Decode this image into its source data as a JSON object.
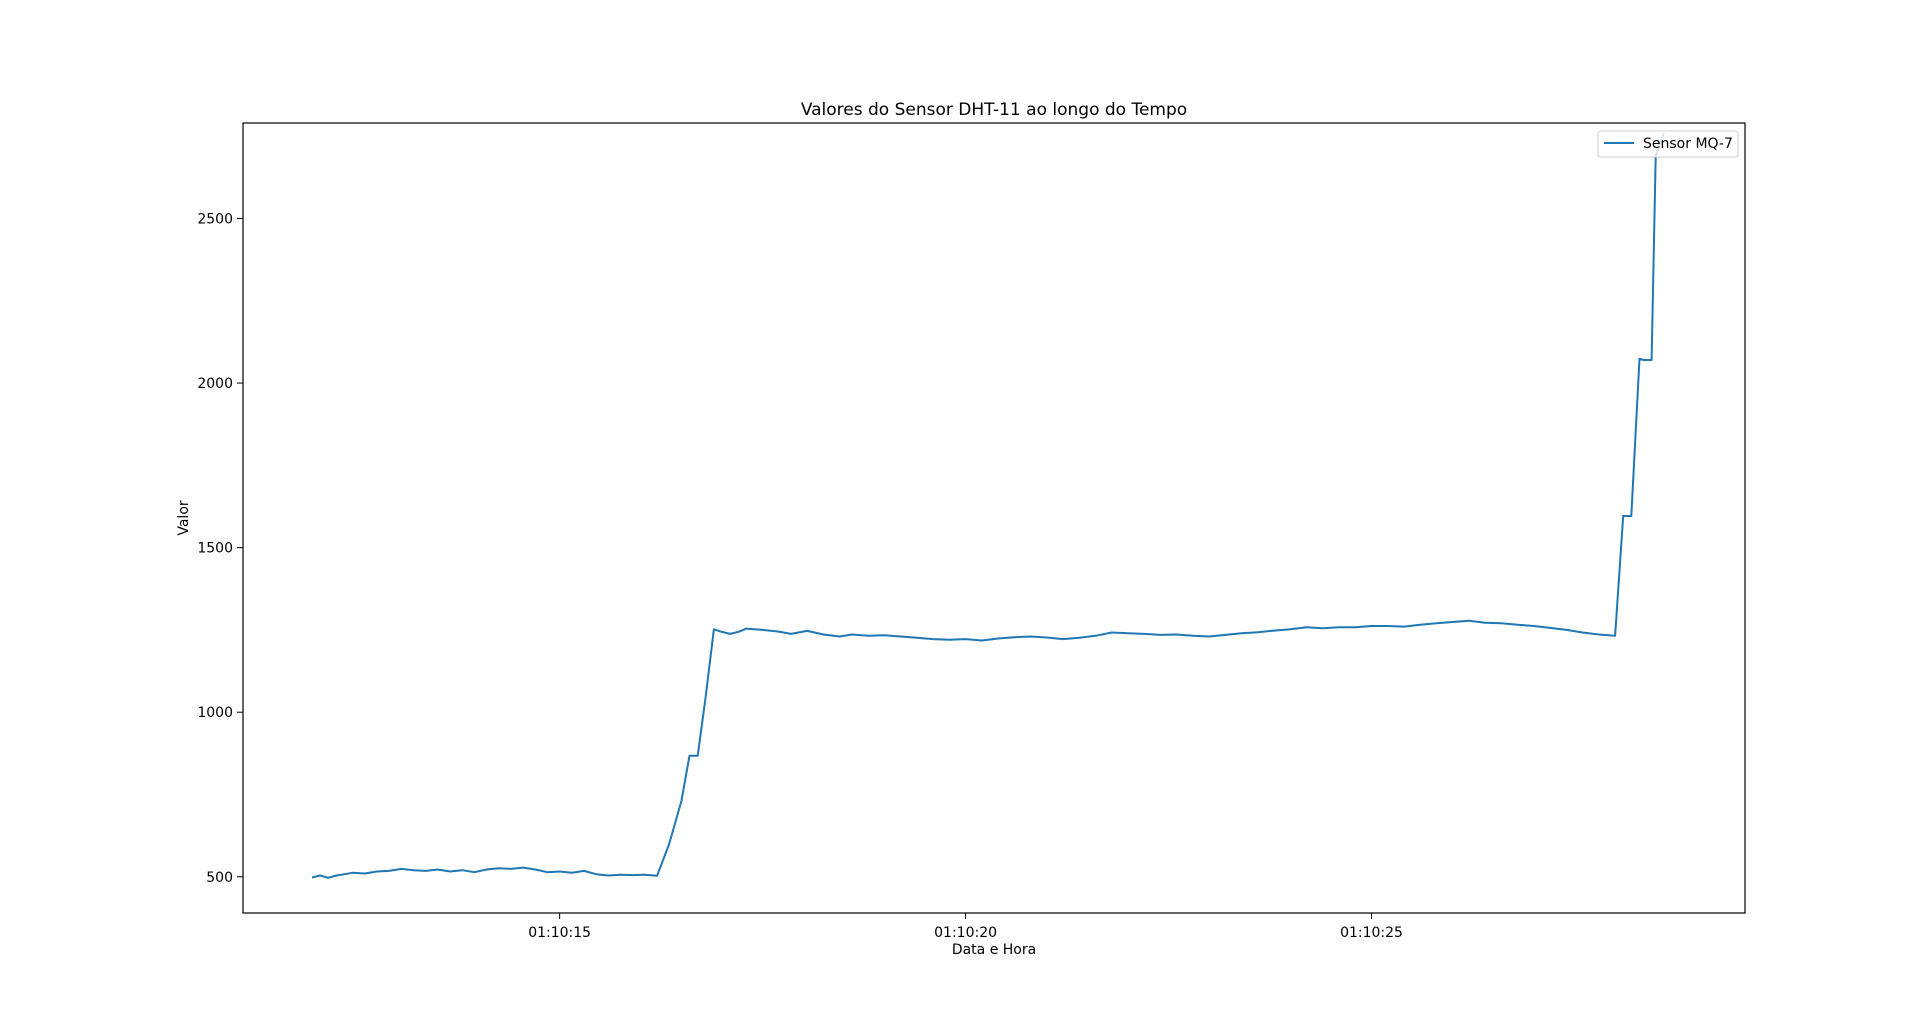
{
  "chart_data": {
    "type": "line",
    "title": "Valores do Sensor DHT-11 ao longo do Tempo",
    "xlabel": "Data e Hora",
    "ylabel": "Valor",
    "x_unit": "seconds after 01:10:00",
    "xlim": [
      11.1,
      29.6
    ],
    "ylim": [
      390,
      2790
    ],
    "x_ticks": [
      {
        "value": 15,
        "label": "01:10:15"
      },
      {
        "value": 20,
        "label": "01:10:20"
      },
      {
        "value": 25,
        "label": "01:10:25"
      }
    ],
    "y_ticks": [
      {
        "value": 500,
        "label": "500"
      },
      {
        "value": 1000,
        "label": "1000"
      },
      {
        "value": 1500,
        "label": "1500"
      },
      {
        "value": 2000,
        "label": "2000"
      },
      {
        "value": 2500,
        "label": "2500"
      }
    ],
    "grid": false,
    "legend_position": "upper right",
    "series": [
      {
        "name": "Sensor MQ-7",
        "color": "#1f77b4",
        "x": [
          11.95,
          12.05,
          12.15,
          12.25,
          12.35,
          12.45,
          12.6,
          12.75,
          12.9,
          13.05,
          13.2,
          13.35,
          13.5,
          13.65,
          13.8,
          13.95,
          14.1,
          14.25,
          14.4,
          14.55,
          14.7,
          14.85,
          15.0,
          15.15,
          15.3,
          15.45,
          15.6,
          15.75,
          15.9,
          16.05,
          16.2,
          16.35,
          16.5,
          16.6,
          16.7,
          16.8,
          16.9,
          17.0,
          17.1,
          17.2,
          17.3,
          17.5,
          17.7,
          17.85,
          18.05,
          18.25,
          18.45,
          18.6,
          18.8,
          19.0,
          19.2,
          19.4,
          19.6,
          19.8,
          20.0,
          20.2,
          20.4,
          20.6,
          20.8,
          21.0,
          21.2,
          21.4,
          21.6,
          21.8,
          22.0,
          22.2,
          22.4,
          22.6,
          22.8,
          23.0,
          23.2,
          23.4,
          23.6,
          23.8,
          24.0,
          24.2,
          24.4,
          24.6,
          24.8,
          25.0,
          25.2,
          25.4,
          25.6,
          25.8,
          26.0,
          26.2,
          26.4,
          26.6,
          26.8,
          27.0,
          27.2,
          27.4,
          27.6,
          27.8,
          28.0,
          28.1,
          28.2,
          28.3,
          28.35,
          28.45,
          28.5,
          28.6
        ],
        "y": [
          498,
          504,
          497,
          504,
          508,
          512,
          510,
          516,
          518,
          524,
          520,
          518,
          522,
          516,
          520,
          514,
          522,
          526,
          524,
          528,
          522,
          514,
          516,
          512,
          518,
          508,
          504,
          506,
          505,
          506,
          503,
          600,
          730,
          868,
          868,
          1050,
          1252,
          1244,
          1238,
          1244,
          1254,
          1250,
          1245,
          1238,
          1247,
          1236,
          1230,
          1236,
          1232,
          1234,
          1230,
          1226,
          1222,
          1220,
          1222,
          1218,
          1224,
          1228,
          1230,
          1227,
          1222,
          1226,
          1232,
          1242,
          1240,
          1238,
          1235,
          1236,
          1232,
          1230,
          1235,
          1240,
          1243,
          1248,
          1252,
          1258,
          1255,
          1258,
          1258,
          1262,
          1262,
          1260,
          1266,
          1270,
          1274,
          1278,
          1272,
          1270,
          1266,
          1262,
          1256,
          1250,
          1242,
          1236,
          1232,
          1596,
          1596,
          2074,
          2070,
          2070,
          2690,
          2760
        ]
      }
    ]
  }
}
